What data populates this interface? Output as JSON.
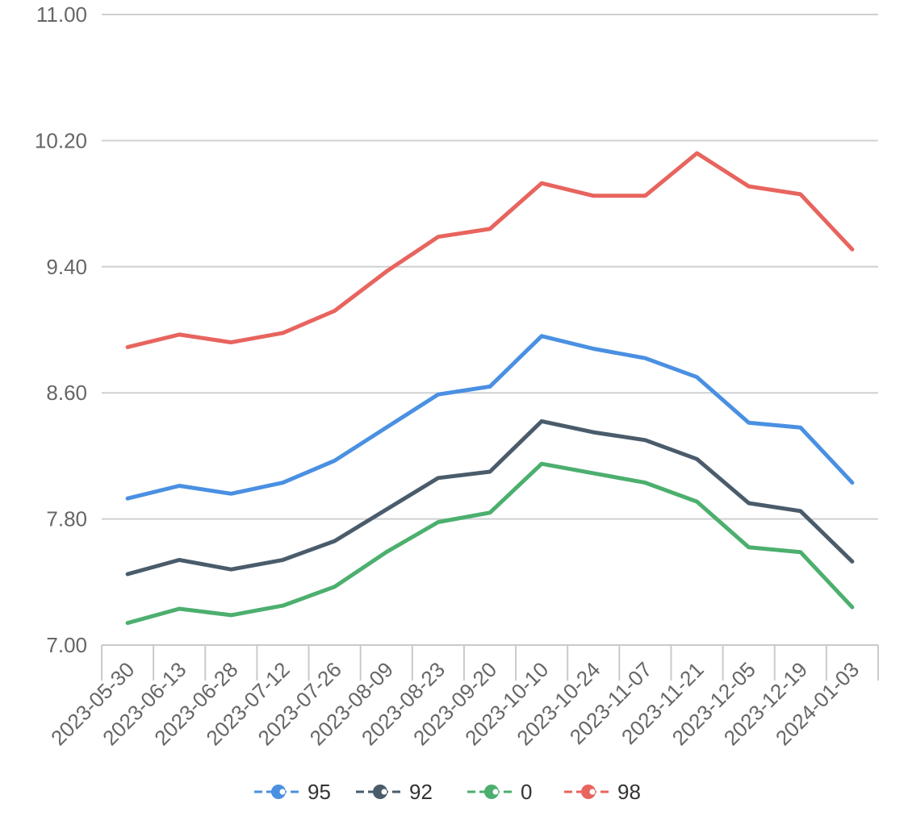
{
  "chart_data": {
    "type": "line",
    "categories": [
      "2023-05-30",
      "2023-06-13",
      "2023-06-28",
      "2023-07-12",
      "2023-07-26",
      "2023-08-09",
      "2023-08-23",
      "2023-09-20",
      "2023-10-10",
      "2023-10-24",
      "2023-11-07",
      "2023-11-21",
      "2023-12-05",
      "2023-12-19",
      "2024-01-03"
    ],
    "yticks": [
      "7.00",
      "7.80",
      "8.60",
      "9.40",
      "10.20",
      "11.00"
    ],
    "ylim": [
      7.0,
      11.0
    ],
    "grid": true,
    "legend_position": "bottom",
    "series": [
      {
        "name": "95",
        "color": "#4a90e2",
        "values": [
          7.93,
          8.01,
          7.96,
          8.03,
          8.17,
          8.38,
          8.59,
          8.64,
          8.96,
          8.88,
          8.82,
          8.7,
          8.41,
          8.38,
          8.03
        ]
      },
      {
        "name": "92",
        "color": "#4a5c6b",
        "values": [
          7.45,
          7.54,
          7.48,
          7.54,
          7.66,
          7.86,
          8.06,
          8.1,
          8.42,
          8.35,
          8.3,
          8.18,
          7.9,
          7.85,
          7.53
        ]
      },
      {
        "name": "0",
        "color": "#4caf6e",
        "values": [
          7.14,
          7.23,
          7.19,
          7.25,
          7.37,
          7.59,
          7.78,
          7.84,
          8.15,
          8.09,
          8.03,
          7.91,
          7.62,
          7.59,
          7.24
        ]
      },
      {
        "name": "98",
        "color": "#e8645e",
        "values": [
          8.89,
          8.97,
          8.92,
          8.98,
          9.12,
          9.37,
          9.59,
          9.64,
          9.93,
          9.85,
          9.85,
          10.12,
          9.91,
          9.86,
          9.51
        ]
      }
    ]
  }
}
